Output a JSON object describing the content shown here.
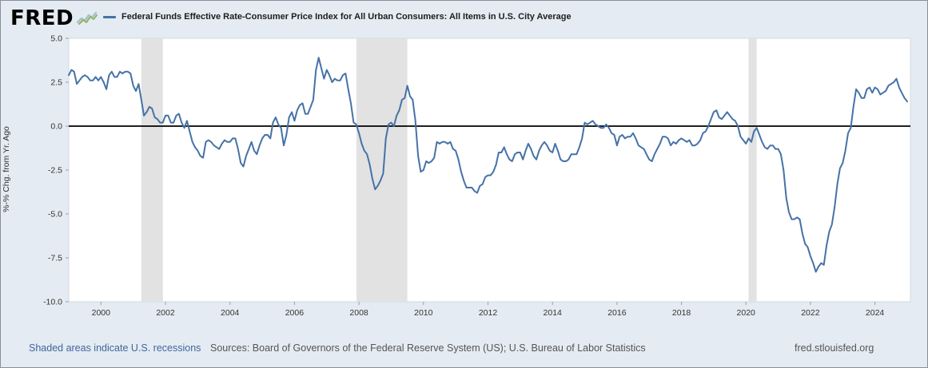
{
  "header": {
    "logo_text": "FRED",
    "legend_label": "Federal Funds Effective Rate-Consumer Price Index for All Urban Consumers: All Items in U.S. City Average"
  },
  "footer": {
    "recession_note": "Shaded areas indicate U.S. recessions",
    "sources": "Sources: Board of Governors of the Federal Reserve System (US); U.S. Bureau of Labor Statistics",
    "site": "fred.stlouisfed.org"
  },
  "colors": {
    "line": "#4572a7",
    "background": "#e4ebf2",
    "plot_bg": "#ffffff",
    "recession": "#e2e2e2",
    "zero_line": "#000000",
    "tick_text": "#333333"
  },
  "chart_data": {
    "type": "line",
    "title": "Federal Funds Effective Rate-Consumer Price Index for All Urban Consumers: All Items in U.S. City Average",
    "xlabel": "",
    "ylabel": "%-% Chg. from Yr. Ago",
    "ylim": [
      -10.0,
      5.0
    ],
    "y_ticks": [
      5.0,
      2.5,
      0.0,
      -2.5,
      -5.0,
      -7.5,
      -10.0
    ],
    "x_domain": [
      1999.0,
      2025.1
    ],
    "x_ticks": [
      2000,
      2002,
      2004,
      2006,
      2008,
      2010,
      2012,
      2014,
      2016,
      2018,
      2020,
      2022,
      2024
    ],
    "x_start": 1999.0,
    "x_step_years": 0.0833333,
    "grid": false,
    "legend_position": "top",
    "recessions": [
      [
        2001.25,
        2001.92
      ],
      [
        2007.92,
        2009.5
      ],
      [
        2020.08,
        2020.33
      ]
    ],
    "series": [
      {
        "name": "Federal Funds Effective Rate minus CPI All Urban Consumers (monthly, % - % Chg. from Yr. Ago)",
        "values": [
          2.9,
          3.2,
          3.1,
          2.4,
          2.6,
          2.8,
          2.9,
          2.8,
          2.6,
          2.6,
          2.8,
          2.6,
          2.8,
          2.5,
          2.1,
          2.9,
          3.1,
          2.8,
          2.8,
          3.1,
          3.0,
          3.1,
          3.1,
          3.0,
          2.3,
          2.0,
          2.4,
          1.5,
          0.6,
          0.8,
          1.1,
          1.0,
          0.5,
          0.4,
          0.2,
          0.2,
          0.6,
          0.6,
          0.2,
          0.2,
          0.6,
          0.7,
          0.2,
          -0.1,
          0.3,
          -0.3,
          -0.9,
          -1.2,
          -1.4,
          -1.7,
          -1.8,
          -0.9,
          -0.8,
          -0.9,
          -1.1,
          -1.2,
          -1.3,
          -1.0,
          -0.8,
          -0.9,
          -0.9,
          -0.7,
          -0.7,
          -1.3,
          -2.1,
          -2.3,
          -1.7,
          -1.3,
          -0.9,
          -1.4,
          -1.6,
          -1.1,
          -0.7,
          -0.5,
          -0.5,
          -0.7,
          0.2,
          0.5,
          0.1,
          -0.1,
          -1.1,
          -0.5,
          0.5,
          0.8,
          0.3,
          0.9,
          1.2,
          1.3,
          0.7,
          0.7,
          1.1,
          1.5,
          3.2,
          3.9,
          3.3,
          2.7,
          3.2,
          2.9,
          2.5,
          2.7,
          2.6,
          2.6,
          2.9,
          3.0,
          2.1,
          1.3,
          0.2,
          0.1,
          -0.4,
          -1.0,
          -1.4,
          -1.6,
          -2.2,
          -3.0,
          -3.6,
          -3.4,
          -3.1,
          -2.7,
          -0.7,
          0.1,
          0.2,
          0.0,
          0.6,
          0.9,
          1.5,
          1.6,
          2.3,
          1.7,
          1.5,
          0.3,
          -1.7,
          -2.6,
          -2.5,
          -2.0,
          -2.1,
          -2.0,
          -1.8,
          -0.9,
          -1.0,
          -0.9,
          -0.9,
          -1.0,
          -0.9,
          -1.3,
          -1.4,
          -1.9,
          -2.6,
          -3.1,
          -3.5,
          -3.5,
          -3.5,
          -3.7,
          -3.8,
          -3.4,
          -3.3,
          -2.9,
          -2.8,
          -2.8,
          -2.6,
          -2.2,
          -1.5,
          -1.5,
          -1.2,
          -1.6,
          -1.9,
          -2.0,
          -1.6,
          -1.5,
          -1.5,
          -1.9,
          -1.4,
          -1.0,
          -1.3,
          -1.7,
          -1.9,
          -1.4,
          -1.1,
          -0.9,
          -1.1,
          -1.4,
          -1.5,
          -1.0,
          -1.4,
          -1.9,
          -2.0,
          -2.0,
          -1.9,
          -1.6,
          -1.6,
          -1.6,
          -1.2,
          -0.7,
          0.2,
          0.1,
          0.2,
          0.3,
          0.1,
          0.0,
          -0.1,
          -0.1,
          0.1,
          -0.1,
          -0.4,
          -0.5,
          -1.1,
          -0.6,
          -0.5,
          -0.7,
          -0.6,
          -0.6,
          -0.4,
          -0.7,
          -1.1,
          -1.2,
          -1.3,
          -1.6,
          -1.9,
          -2.0,
          -1.6,
          -1.3,
          -1.0,
          -0.6,
          -0.6,
          -0.7,
          -1.1,
          -0.9,
          -1.0,
          -0.8,
          -0.7,
          -0.8,
          -0.9,
          -0.8,
          -1.1,
          -1.1,
          -1.0,
          -0.8,
          -0.4,
          -0.3,
          0.0,
          0.4,
          0.8,
          0.9,
          0.5,
          0.4,
          0.6,
          0.8,
          0.6,
          0.4,
          0.3,
          0.0,
          -0.6,
          -0.8,
          -1.0,
          -0.7,
          -0.9,
          -0.3,
          -0.1,
          -0.5,
          -0.9,
          -1.2,
          -1.3,
          -1.1,
          -1.1,
          -1.3,
          -1.3,
          -1.6,
          -2.5,
          -4.1,
          -4.9,
          -5.3,
          -5.3,
          -5.2,
          -5.3,
          -6.1,
          -6.7,
          -6.9,
          -7.4,
          -7.8,
          -8.3,
          -8.0,
          -7.8,
          -7.9,
          -6.8,
          -6.0,
          -5.6,
          -4.6,
          -3.3,
          -2.4,
          -2.1,
          -1.4,
          -0.4,
          -0.1,
          1.1,
          2.1,
          1.9,
          1.6,
          1.6,
          2.1,
          2.2,
          1.9,
          2.2,
          2.1,
          1.8,
          1.9,
          2.0,
          2.3,
          2.4,
          2.5,
          2.7,
          2.2,
          1.9,
          1.6,
          1.4
        ]
      }
    ]
  }
}
